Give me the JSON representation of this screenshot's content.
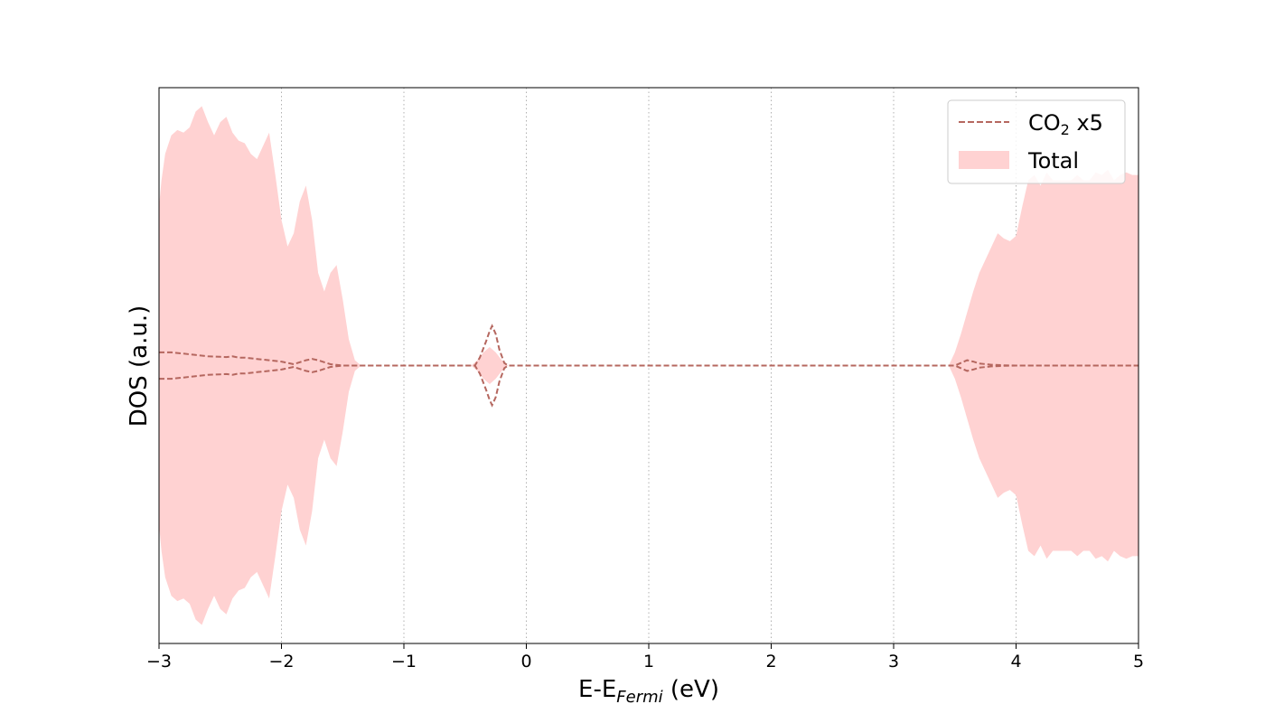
{
  "chart_data": {
    "type": "area",
    "title": "",
    "xlabel": {
      "main": "E-E",
      "sub": "Fermi",
      "suffix": " (eV)"
    },
    "ylabel": "DOS (a.u.)",
    "xlim": [
      -3,
      5
    ],
    "ylim": [
      -1.05,
      1.05
    ],
    "xticks": [
      -3,
      -2,
      -1,
      0,
      1,
      2,
      3,
      4,
      5
    ],
    "xtick_labels": [
      "−3",
      "−2",
      "−1",
      "0",
      "1",
      "2",
      "3",
      "4",
      "5"
    ],
    "yticks_shown": false,
    "grid": {
      "x": true,
      "y": false,
      "style": "dotted"
    },
    "legend": {
      "placement": "top-right",
      "entries": [
        {
          "series": "co2",
          "label_main": "CO",
          "label_sub": "2",
          "label_suffix": " x5"
        },
        {
          "series": "total",
          "label_main": "Total"
        }
      ]
    },
    "series": [
      {
        "id": "co2",
        "name": "CO2 x5",
        "style": "dashed-line",
        "color": "#b5675f",
        "mirrored": true,
        "x": [
          -3.0,
          -2.9,
          -2.8,
          -2.7,
          -2.6,
          -2.5,
          -2.45,
          -2.4,
          -2.35,
          -2.3,
          -2.2,
          -2.1,
          -2.0,
          -1.95,
          -1.9,
          -1.8,
          -1.75,
          -1.7,
          -1.6,
          -1.5,
          -1.4,
          -1.35,
          -0.5,
          -0.42,
          -0.38,
          -0.33,
          -0.3,
          -0.28,
          -0.25,
          -0.22,
          -0.18,
          -0.15,
          -0.1,
          3.4,
          3.5,
          3.55,
          3.6,
          3.65,
          3.7,
          3.8,
          3.9,
          4.0,
          4.5,
          5.0
        ],
        "y": [
          0.05,
          0.05,
          0.045,
          0.04,
          0.035,
          0.033,
          0.032,
          0.035,
          0.03,
          0.03,
          0.025,
          0.02,
          0.015,
          0.01,
          0.005,
          0.02,
          0.025,
          0.02,
          0.005,
          0.0,
          0.0,
          0.0,
          0.0,
          0.0,
          0.03,
          0.09,
          0.13,
          0.15,
          0.12,
          0.06,
          0.01,
          0.0,
          0.0,
          0.0,
          0.0,
          0.01,
          0.02,
          0.015,
          0.008,
          0.003,
          0.001,
          0.0,
          0.0,
          0.0
        ]
      },
      {
        "id": "total",
        "name": "Total",
        "style": "filled-area",
        "color": "#ffd2d2",
        "mirrored": true,
        "x": [
          -3.0,
          -2.98,
          -2.95,
          -2.9,
          -2.85,
          -2.8,
          -2.75,
          -2.7,
          -2.65,
          -2.6,
          -2.55,
          -2.5,
          -2.45,
          -2.4,
          -2.35,
          -2.3,
          -2.25,
          -2.2,
          -2.15,
          -2.1,
          -2.05,
          -2.0,
          -1.95,
          -1.9,
          -1.85,
          -1.8,
          -1.75,
          -1.7,
          -1.65,
          -1.6,
          -1.55,
          -1.5,
          -1.45,
          -1.4,
          -1.35,
          -0.45,
          -0.4,
          -0.35,
          -0.3,
          -0.25,
          -0.2,
          -0.15,
          3.45,
          3.5,
          3.55,
          3.6,
          3.65,
          3.7,
          3.75,
          3.8,
          3.85,
          3.9,
          3.95,
          4.0,
          4.05,
          4.1,
          4.15,
          4.2,
          4.25,
          4.3,
          4.35,
          4.4,
          4.45,
          4.5,
          4.55,
          4.6,
          4.65,
          4.7,
          4.75,
          4.8,
          4.85,
          4.9,
          4.95,
          5.0
        ],
        "y": [
          0.6,
          0.7,
          0.8,
          0.87,
          0.89,
          0.88,
          0.9,
          0.96,
          0.98,
          0.92,
          0.87,
          0.92,
          0.94,
          0.88,
          0.85,
          0.84,
          0.8,
          0.78,
          0.83,
          0.88,
          0.72,
          0.55,
          0.45,
          0.5,
          0.62,
          0.68,
          0.55,
          0.35,
          0.28,
          0.35,
          0.38,
          0.25,
          0.1,
          0.02,
          0.0,
          0.0,
          0.02,
          0.05,
          0.07,
          0.05,
          0.02,
          0.0,
          0.0,
          0.05,
          0.12,
          0.2,
          0.28,
          0.35,
          0.4,
          0.45,
          0.5,
          0.48,
          0.47,
          0.49,
          0.6,
          0.7,
          0.72,
          0.68,
          0.73,
          0.7,
          0.7,
          0.7,
          0.7,
          0.72,
          0.7,
          0.7,
          0.73,
          0.72,
          0.74,
          0.7,
          0.72,
          0.73,
          0.72,
          0.72
        ]
      }
    ]
  }
}
